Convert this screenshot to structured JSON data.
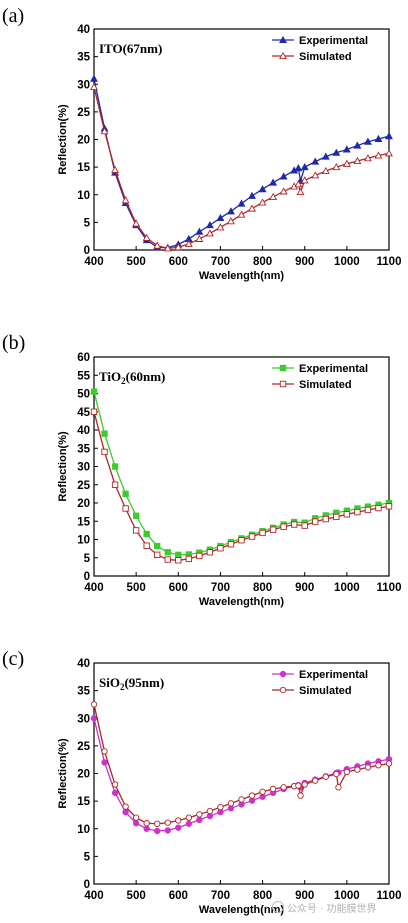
{
  "watermark": "公众号 · 功能膜世界",
  "chart_data": [
    {
      "type": "line",
      "panel": "(a)",
      "title_main": "ITO(67nm)",
      "title_sub": "",
      "xlabel": "Wavelength(nm)",
      "ylabel": "Reflection(%)",
      "xlim": [
        400,
        1100
      ],
      "ylim": [
        0,
        40
      ],
      "xticks": [
        400,
        500,
        600,
        700,
        800,
        900,
        1000,
        1100
      ],
      "yticks": [
        0,
        5,
        10,
        15,
        20,
        25,
        30,
        35,
        40
      ],
      "legend_position": "top-right",
      "x": [
        400,
        425,
        450,
        475,
        500,
        525,
        550,
        575,
        600,
        625,
        650,
        675,
        700,
        725,
        750,
        775,
        800,
        825,
        850,
        875,
        885,
        890,
        900,
        925,
        950,
        975,
        1000,
        1025,
        1050,
        1075,
        1100
      ],
      "series": [
        {
          "name": "Experimental",
          "color": "#1f2aa8",
          "marker": "filled-triangle",
          "values": [
            31,
            22,
            14,
            8.5,
            4.5,
            1.8,
            0.5,
            0.4,
            1.0,
            2.0,
            3.3,
            4.5,
            5.8,
            7.0,
            8.4,
            9.8,
            11.0,
            12.2,
            13.3,
            14.4,
            14.8,
            12.5,
            15.0,
            16.0,
            16.9,
            17.6,
            18.2,
            18.9,
            19.6,
            20.1,
            20.6
          ]
        },
        {
          "name": "Simulated",
          "color": "#b22626",
          "marker": "open-triangle",
          "values": [
            29.5,
            21.5,
            14.5,
            9.0,
            4.8,
            2.2,
            0.8,
            0.3,
            0.5,
            1.1,
            2.0,
            3.0,
            4.1,
            5.2,
            6.4,
            7.5,
            8.6,
            9.6,
            10.6,
            11.5,
            11.9,
            10.5,
            12.6,
            13.5,
            14.3,
            15.0,
            15.6,
            16.1,
            16.6,
            17.1,
            17.5
          ]
        }
      ]
    },
    {
      "type": "line",
      "panel": "(b)",
      "title_main": "TiO",
      "title_sub": "2",
      "title_suffix": "(60nm)",
      "xlabel": "Wavelength(nm)",
      "ylabel": "Reflection(%)",
      "xlim": [
        400,
        1100
      ],
      "ylim": [
        0,
        60
      ],
      "xticks": [
        400,
        500,
        600,
        700,
        800,
        900,
        1000,
        1100
      ],
      "yticks": [
        0,
        5,
        10,
        15,
        20,
        25,
        30,
        35,
        40,
        45,
        50,
        55,
        60
      ],
      "legend_position": "top-right",
      "x": [
        400,
        425,
        450,
        475,
        500,
        525,
        550,
        575,
        600,
        625,
        650,
        675,
        700,
        725,
        750,
        775,
        800,
        825,
        850,
        875,
        900,
        925,
        950,
        975,
        1000,
        1025,
        1050,
        1075,
        1100
      ],
      "series": [
        {
          "name": "Experimental",
          "color": "#3ccc2e",
          "marker": "filled-square",
          "values": [
            50.5,
            39,
            30,
            22.5,
            16.5,
            11.5,
            8.2,
            6.5,
            5.8,
            5.9,
            6.4,
            7.2,
            8.2,
            9.3,
            10.3,
            11.3,
            12.3,
            13.2,
            14.1,
            14.8,
            14.6,
            15.8,
            16.6,
            17.3,
            17.9,
            18.5,
            19.0,
            19.5,
            20.0
          ]
        },
        {
          "name": "Simulated",
          "color": "#b22626",
          "marker": "open-square",
          "values": [
            45,
            34,
            25,
            18.5,
            12.5,
            8.3,
            5.8,
            4.5,
            4.3,
            4.7,
            5.5,
            6.5,
            7.6,
            8.7,
            9.8,
            10.8,
            11.8,
            12.7,
            13.5,
            14.1,
            13.8,
            14.9,
            15.6,
            16.2,
            16.9,
            17.5,
            18.1,
            18.6,
            19.1
          ]
        }
      ]
    },
    {
      "type": "line",
      "panel": "(c)",
      "title_main": "SiO",
      "title_sub": "2",
      "title_suffix": "(95nm)",
      "xlabel": "Wavelength(nm)",
      "ylabel": "Reflection(%)",
      "xlim": [
        400,
        1100
      ],
      "ylim": [
        0,
        40
      ],
      "xticks": [
        400,
        500,
        600,
        700,
        800,
        900,
        1000,
        1100
      ],
      "yticks": [
        0,
        5,
        10,
        15,
        20,
        25,
        30,
        35,
        40
      ],
      "legend_position": "top-right",
      "x": [
        400,
        425,
        450,
        475,
        500,
        525,
        550,
        575,
        600,
        625,
        650,
        675,
        700,
        725,
        750,
        775,
        800,
        825,
        850,
        875,
        885,
        890,
        900,
        925,
        950,
        975,
        980,
        1000,
        1025,
        1050,
        1075,
        1100
      ],
      "series": [
        {
          "name": "Experimental",
          "color": "#cc33cc",
          "marker": "filled-circle",
          "values": [
            30,
            22,
            16.5,
            13.0,
            11.0,
            10.0,
            9.6,
            9.7,
            10.2,
            10.9,
            11.6,
            12.3,
            13.0,
            13.7,
            14.4,
            15.1,
            15.8,
            16.5,
            17.2,
            17.7,
            17.9,
            17.5,
            18.3,
            18.9,
            19.5,
            20.1,
            20.2,
            20.8,
            21.3,
            21.8,
            22.2,
            22.6
          ]
        },
        {
          "name": "Simulated",
          "color": "#b22626",
          "marker": "open-circle",
          "values": [
            32.5,
            24,
            18,
            14.0,
            12.0,
            11.0,
            10.9,
            11.1,
            11.5,
            12.0,
            12.6,
            13.2,
            13.9,
            14.6,
            15.3,
            16.0,
            16.7,
            17.2,
            17.5,
            17.7,
            17.8,
            16.0,
            18.0,
            18.7,
            19.4,
            19.9,
            17.5,
            20.3,
            20.7,
            21.1,
            21.5,
            21.8
          ]
        }
      ]
    }
  ]
}
